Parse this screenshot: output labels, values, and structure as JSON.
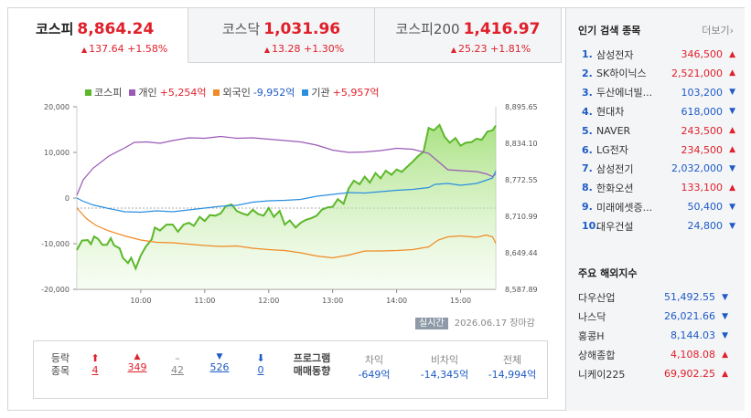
{
  "tabs": [
    {
      "name": "코스피",
      "value": "8,864.24",
      "change": "137.64 +1.58%"
    },
    {
      "name": "코스닥",
      "value": "1,031.96",
      "change": "13.28 +1.30%"
    },
    {
      "name": "코스피200",
      "value": "1,416.97",
      "change": "25.23 +1.81%"
    }
  ],
  "legend": [
    {
      "name": "코스피",
      "value": "",
      "color": "#5cb82a"
    },
    {
      "name": "개인",
      "value": "+5,254억",
      "color": "#9b59b6"
    },
    {
      "name": "외국인",
      "value": "-9,952억",
      "color": "#f08a24"
    },
    {
      "name": "기관",
      "value": "+5,957억",
      "color": "#2b8fe0"
    }
  ],
  "chart_data": {
    "type": "line",
    "x_ticks": [
      "10:00",
      "11:00",
      "12:00",
      "13:00",
      "14:00",
      "15:00"
    ],
    "y_left_ticks": [
      "20,000",
      "10,000",
      "0",
      "-10,000",
      "-20,000"
    ],
    "y_left_range": [
      -20000,
      20000
    ],
    "y_right_ticks": [
      "8,895.65",
      "8,834.10",
      "8,772.55",
      "8,710.99",
      "8,649.44",
      "8,587.89"
    ],
    "y_right_range": [
      8587.89,
      8895.65
    ],
    "x_range_hours": [
      9.0,
      15.55
    ],
    "series": [
      {
        "name": "코스피",
        "axis": "right",
        "color": "#5cb82a",
        "fill": true,
        "points": [
          [
            9.0,
            8654
          ],
          [
            9.08,
            8670
          ],
          [
            9.17,
            8671
          ],
          [
            9.22,
            8664
          ],
          [
            9.27,
            8677
          ],
          [
            9.33,
            8673
          ],
          [
            9.4,
            8663
          ],
          [
            9.47,
            8663
          ],
          [
            9.53,
            8674
          ],
          [
            9.58,
            8662
          ],
          [
            9.67,
            8657
          ],
          [
            9.72,
            8641
          ],
          [
            9.8,
            8632
          ],
          [
            9.85,
            8641
          ],
          [
            9.92,
            8623
          ],
          [
            10.0,
            8645
          ],
          [
            10.08,
            8660
          ],
          [
            10.17,
            8672
          ],
          [
            10.22,
            8692
          ],
          [
            10.3,
            8687
          ],
          [
            10.4,
            8697
          ],
          [
            10.5,
            8697
          ],
          [
            10.58,
            8685
          ],
          [
            10.67,
            8697
          ],
          [
            10.75,
            8700
          ],
          [
            10.83,
            8695
          ],
          [
            10.92,
            8710
          ],
          [
            11.0,
            8703
          ],
          [
            11.08,
            8713
          ],
          [
            11.17,
            8712
          ],
          [
            11.25,
            8716
          ],
          [
            11.33,
            8728
          ],
          [
            11.42,
            8731
          ],
          [
            11.5,
            8720
          ],
          [
            11.58,
            8716
          ],
          [
            11.67,
            8713
          ],
          [
            11.75,
            8722
          ],
          [
            11.83,
            8715
          ],
          [
            11.92,
            8712
          ],
          [
            12.0,
            8725
          ],
          [
            12.08,
            8710
          ],
          [
            12.17,
            8720
          ],
          [
            12.25,
            8697
          ],
          [
            12.33,
            8704
          ],
          [
            12.42,
            8692
          ],
          [
            12.5,
            8700
          ],
          [
            12.58,
            8705
          ],
          [
            12.67,
            8708
          ],
          [
            12.75,
            8712
          ],
          [
            12.83,
            8722
          ],
          [
            12.92,
            8726
          ],
          [
            13.0,
            8727
          ],
          [
            13.08,
            8740
          ],
          [
            13.17,
            8732
          ],
          [
            13.25,
            8758
          ],
          [
            13.33,
            8771
          ],
          [
            13.42,
            8765
          ],
          [
            13.5,
            8778
          ],
          [
            13.58,
            8768
          ],
          [
            13.67,
            8784
          ],
          [
            13.75,
            8775
          ],
          [
            13.83,
            8788
          ],
          [
            13.92,
            8781
          ],
          [
            14.0,
            8790
          ],
          [
            14.08,
            8786
          ],
          [
            14.17,
            8795
          ],
          [
            14.25,
            8803
          ],
          [
            14.33,
            8812
          ],
          [
            14.42,
            8820
          ],
          [
            14.5,
            8860
          ],
          [
            14.58,
            8856
          ],
          [
            14.67,
            8865
          ],
          [
            14.75,
            8845
          ],
          [
            14.83,
            8835
          ],
          [
            14.92,
            8843
          ],
          [
            15.0,
            8830
          ],
          [
            15.08,
            8835
          ],
          [
            15.17,
            8836
          ],
          [
            15.25,
            8842
          ],
          [
            15.33,
            8840
          ],
          [
            15.42,
            8854
          ],
          [
            15.5,
            8856
          ],
          [
            15.55,
            8864
          ]
        ]
      },
      {
        "name": "개인",
        "axis": "left",
        "color": "#9b59b6",
        "points": [
          [
            9.0,
            600
          ],
          [
            9.1,
            4000
          ],
          [
            9.25,
            6500
          ],
          [
            9.5,
            9200
          ],
          [
            9.75,
            11000
          ],
          [
            9.9,
            12200
          ],
          [
            10.1,
            12300
          ],
          [
            10.3,
            12000
          ],
          [
            10.5,
            12600
          ],
          [
            10.75,
            13200
          ],
          [
            11.0,
            13100
          ],
          [
            11.25,
            13500
          ],
          [
            11.5,
            13100
          ],
          [
            11.75,
            13200
          ],
          [
            12.0,
            12900
          ],
          [
            12.25,
            12600
          ],
          [
            12.5,
            12300
          ],
          [
            12.75,
            11600
          ],
          [
            13.0,
            10500
          ],
          [
            13.25,
            10000
          ],
          [
            13.5,
            10100
          ],
          [
            13.75,
            10400
          ],
          [
            14.0,
            10900
          ],
          [
            14.25,
            10700
          ],
          [
            14.5,
            9800
          ],
          [
            14.65,
            8000
          ],
          [
            14.8,
            6200
          ],
          [
            15.0,
            6000
          ],
          [
            15.25,
            5800
          ],
          [
            15.4,
            5300
          ],
          [
            15.5,
            4700
          ],
          [
            15.55,
            5254
          ]
        ]
      },
      {
        "name": "외국인",
        "axis": "left",
        "color": "#f08a24",
        "points": [
          [
            9.0,
            -2200
          ],
          [
            9.15,
            -4500
          ],
          [
            9.3,
            -6000
          ],
          [
            9.5,
            -7200
          ],
          [
            9.75,
            -8300
          ],
          [
            10.0,
            -9200
          ],
          [
            10.25,
            -9700
          ],
          [
            10.5,
            -9800
          ],
          [
            10.75,
            -10100
          ],
          [
            11.0,
            -10400
          ],
          [
            11.25,
            -10600
          ],
          [
            11.5,
            -10500
          ],
          [
            11.75,
            -11000
          ],
          [
            12.0,
            -11300
          ],
          [
            12.25,
            -11500
          ],
          [
            12.5,
            -12000
          ],
          [
            12.75,
            -12700
          ],
          [
            13.0,
            -13100
          ],
          [
            13.25,
            -12500
          ],
          [
            13.5,
            -11600
          ],
          [
            13.75,
            -11600
          ],
          [
            14.0,
            -11500
          ],
          [
            14.25,
            -11300
          ],
          [
            14.5,
            -10700
          ],
          [
            14.65,
            -9200
          ],
          [
            14.8,
            -8500
          ],
          [
            15.0,
            -8300
          ],
          [
            15.25,
            -8600
          ],
          [
            15.4,
            -8100
          ],
          [
            15.5,
            -8500
          ],
          [
            15.55,
            -9952
          ]
        ]
      },
      {
        "name": "기관",
        "axis": "left",
        "color": "#2b8fe0",
        "points": [
          [
            9.0,
            0
          ],
          [
            9.1,
            -700
          ],
          [
            9.25,
            -1500
          ],
          [
            9.5,
            -2300
          ],
          [
            9.75,
            -3000
          ],
          [
            10.0,
            -3100
          ],
          [
            10.25,
            -2800
          ],
          [
            10.5,
            -3000
          ],
          [
            10.75,
            -2600
          ],
          [
            11.0,
            -2200
          ],
          [
            11.25,
            -1800
          ],
          [
            11.5,
            -1600
          ],
          [
            11.75,
            -900
          ],
          [
            12.0,
            -600
          ],
          [
            12.25,
            -500
          ],
          [
            12.5,
            -300
          ],
          [
            12.75,
            400
          ],
          [
            13.0,
            800
          ],
          [
            13.25,
            1200
          ],
          [
            13.5,
            1100
          ],
          [
            13.75,
            1400
          ],
          [
            14.0,
            1700
          ],
          [
            14.25,
            1900
          ],
          [
            14.5,
            2300
          ],
          [
            14.6,
            3000
          ],
          [
            14.8,
            3200
          ],
          [
            15.0,
            2800
          ],
          [
            15.25,
            3200
          ],
          [
            15.4,
            3900
          ],
          [
            15.5,
            4400
          ],
          [
            15.55,
            5957
          ]
        ]
      }
    ]
  },
  "stamp": {
    "badge": "실시간",
    "date": "2026.06.17",
    "status": "장마감"
  },
  "stats": {
    "label1": "등락",
    "label2": "종목",
    "counts": [
      {
        "icon": "⬆",
        "value": "4",
        "cls": "up"
      },
      {
        "icon": "▲",
        "value": "349",
        "cls": "up"
      },
      {
        "icon": "–",
        "value": "42",
        "cls": "gray"
      },
      {
        "icon": "▼",
        "value": "526",
        "cls": "dn"
      },
      {
        "icon": "⬇",
        "value": "0",
        "cls": "dn"
      }
    ],
    "program_label1": "프로그램",
    "program_label2": "매매동향",
    "program": [
      {
        "label": "차익",
        "value": "-649억"
      },
      {
        "label": "비차익",
        "value": "-14,345억"
      },
      {
        "label": "전체",
        "value": "-14,994억"
      }
    ]
  },
  "sidebar": {
    "popular_title": "인기 검색 종목",
    "more": "더보기",
    "popular": [
      {
        "rank": "1.",
        "name": "삼성전자",
        "price": "346,500",
        "dir": "up"
      },
      {
        "rank": "2.",
        "name": "SK하이닉스",
        "price": "2,521,000",
        "dir": "up"
      },
      {
        "rank": "3.",
        "name": "두산에너빌...",
        "price": "103,200",
        "dir": "dn"
      },
      {
        "rank": "4.",
        "name": "현대차",
        "price": "618,000",
        "dir": "dn"
      },
      {
        "rank": "5.",
        "name": "NAVER",
        "price": "243,500",
        "dir": "up"
      },
      {
        "rank": "6.",
        "name": "LG전자",
        "price": "234,500",
        "dir": "up"
      },
      {
        "rank": "7.",
        "name": "삼성전기",
        "price": "2,032,000",
        "dir": "dn"
      },
      {
        "rank": "8.",
        "name": "한화오션",
        "price": "133,100",
        "dir": "up"
      },
      {
        "rank": "9.",
        "name": "미래에셋증...",
        "price": "50,400",
        "dir": "dn"
      },
      {
        "rank": "10.",
        "name": "대우건설",
        "price": "24,800",
        "dir": "dn"
      }
    ],
    "overseas_title": "주요 해외지수",
    "overseas": [
      {
        "name": "다우산업",
        "value": "51,492.55",
        "dir": "dn"
      },
      {
        "name": "나스닥",
        "value": "26,021.66",
        "dir": "dn"
      },
      {
        "name": "홍콩H",
        "value": "8,144.03",
        "dir": "dn"
      },
      {
        "name": "상해종합",
        "value": "4,108.08",
        "dir": "up"
      },
      {
        "name": "니케이225",
        "value": "69,902.25",
        "dir": "up"
      }
    ]
  }
}
